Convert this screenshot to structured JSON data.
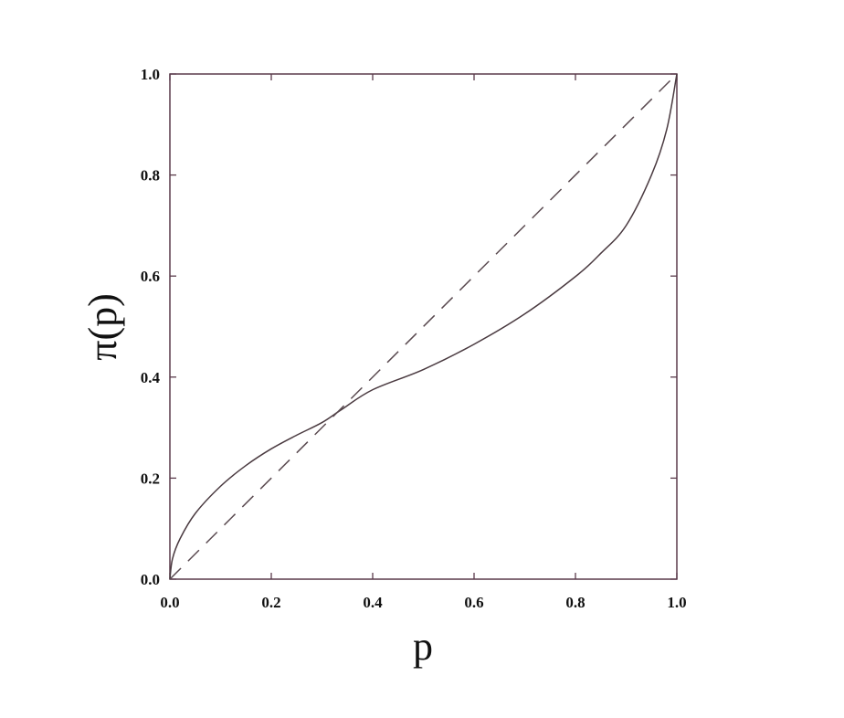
{
  "chart_data": {
    "type": "line",
    "title": "",
    "xlabel": "p",
    "ylabel": "π(p)",
    "xlim": [
      0,
      1
    ],
    "ylim": [
      0,
      1
    ],
    "xticks": [
      "0.0",
      "0.2",
      "0.4",
      "0.6",
      "0.8",
      "1.0"
    ],
    "yticks": [
      "0.0",
      "0.2",
      "0.4",
      "0.6",
      "0.8",
      "1.0"
    ],
    "grid": false,
    "series": [
      {
        "style": "solid",
        "x": [
          0,
          0.005,
          0.02,
          0.05,
          0.1,
          0.15,
          0.2,
          0.25,
          0.3,
          0.339,
          0.4,
          0.5,
          0.6,
          0.7,
          0.8,
          0.85,
          0.9,
          0.95,
          0.98,
          1.0
        ],
        "y": [
          0,
          0.04,
          0.08,
          0.13,
          0.184,
          0.225,
          0.258,
          0.285,
          0.31,
          0.336,
          0.375,
          0.415,
          0.465,
          0.525,
          0.599,
          0.645,
          0.7,
          0.8,
          0.89,
          1.0
        ]
      },
      {
        "style": "dashed",
        "x": [
          0,
          1
        ],
        "y": [
          0,
          1
        ]
      }
    ],
    "colors": {
      "axis": "#5a3a4a",
      "curve": "#4a3a40",
      "diagonal": "#5a4a50"
    }
  }
}
